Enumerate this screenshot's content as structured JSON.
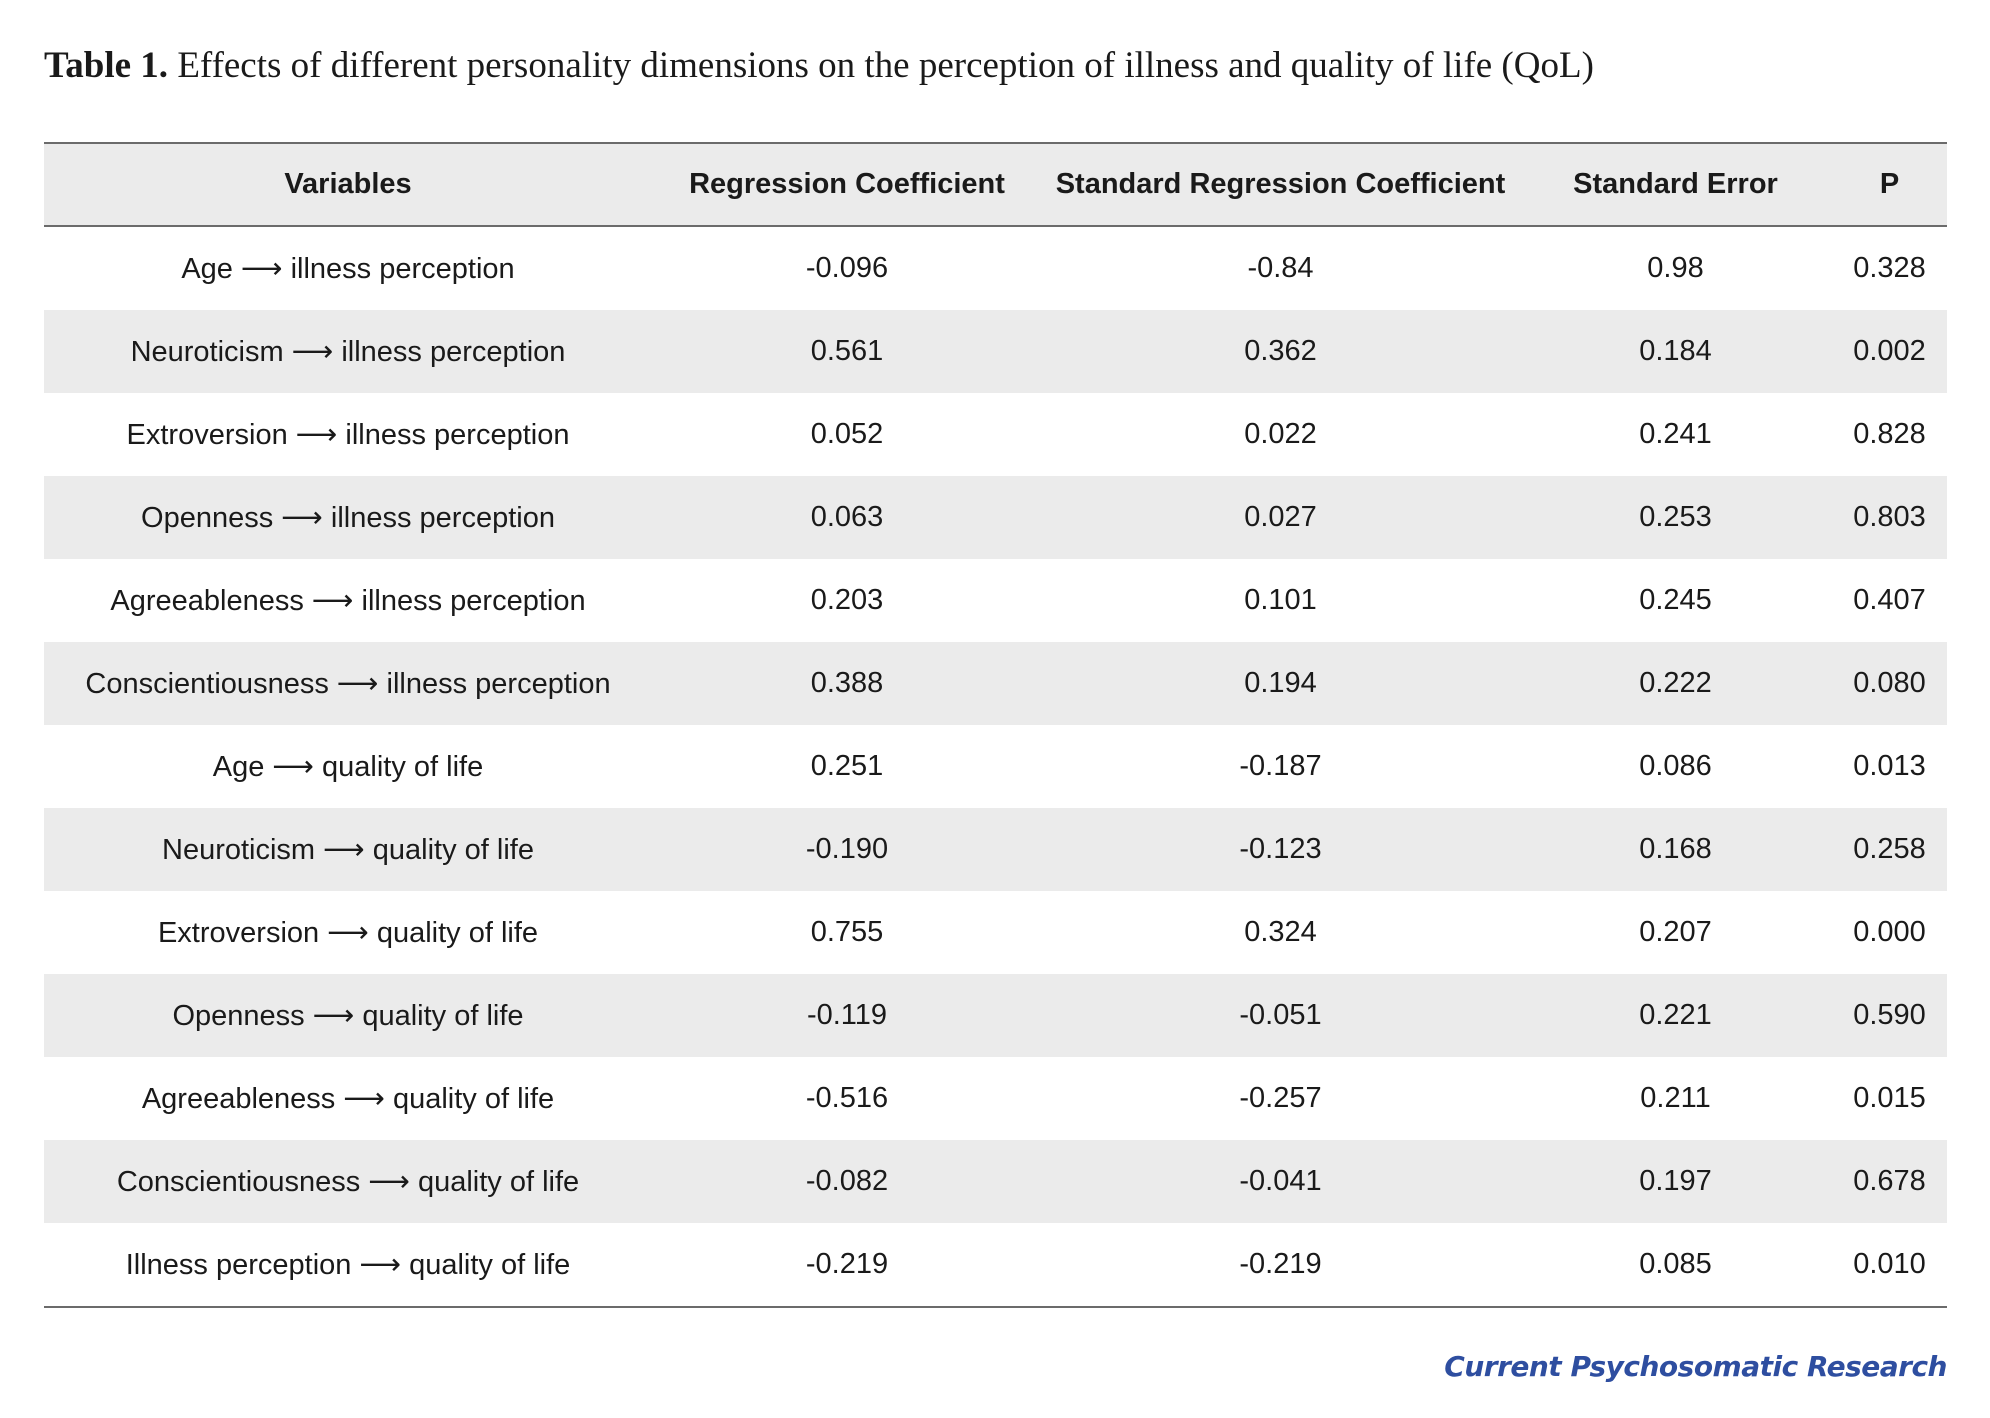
{
  "caption": {
    "label": "Table 1.",
    "text": "Effects of different personality dimensions on the perception of illness and quality of life (QoL)"
  },
  "table": {
    "headers": [
      "Variables",
      "Regression Coefficient",
      "Standard Regression Coefficient",
      "Standard Error",
      "P"
    ],
    "rows": [
      [
        "Age ⟶ illness perception",
        "-0.096",
        "-0.84",
        "0.98",
        "0.328"
      ],
      [
        "Neuroticism ⟶ illness perception",
        "0.561",
        "0.362",
        "0.184",
        "0.002"
      ],
      [
        "Extroversion ⟶ illness perception",
        "0.052",
        "0.022",
        "0.241",
        "0.828"
      ],
      [
        "Openness ⟶ illness perception",
        "0.063",
        "0.027",
        "0.253",
        "0.803"
      ],
      [
        "Agreeableness ⟶ illness perception",
        "0.203",
        "0.101",
        "0.245",
        "0.407"
      ],
      [
        "Conscientiousness ⟶ illness perception",
        "0.388",
        "0.194",
        "0.222",
        "0.080"
      ],
      [
        "Age ⟶ quality of life",
        "0.251",
        "-0.187",
        "0.086",
        "0.013"
      ],
      [
        "Neuroticism ⟶ quality of life",
        "-0.190",
        "-0.123",
        "0.168",
        "0.258"
      ],
      [
        "Extroversion ⟶ quality of life",
        "0.755",
        "0.324",
        "0.207",
        "0.000"
      ],
      [
        "Openness ⟶ quality of life",
        "-0.119",
        "-0.051",
        "0.221",
        "0.590"
      ],
      [
        "Agreeableness ⟶ quality of life",
        "-0.516",
        "-0.257",
        "0.211",
        "0.015"
      ],
      [
        "Conscientiousness ⟶ quality of life",
        "-0.082",
        "-0.041",
        "0.197",
        "0.678"
      ],
      [
        "Illness perception ⟶ quality of life",
        "-0.219",
        "-0.219",
        "0.085",
        "0.010"
      ]
    ]
  },
  "footer": {
    "journal": "Current Psychosomatic Research"
  },
  "colors": {
    "stripe": "#ebebeb",
    "rule": "#6b6b6b",
    "journal": "#2e4ea0"
  }
}
